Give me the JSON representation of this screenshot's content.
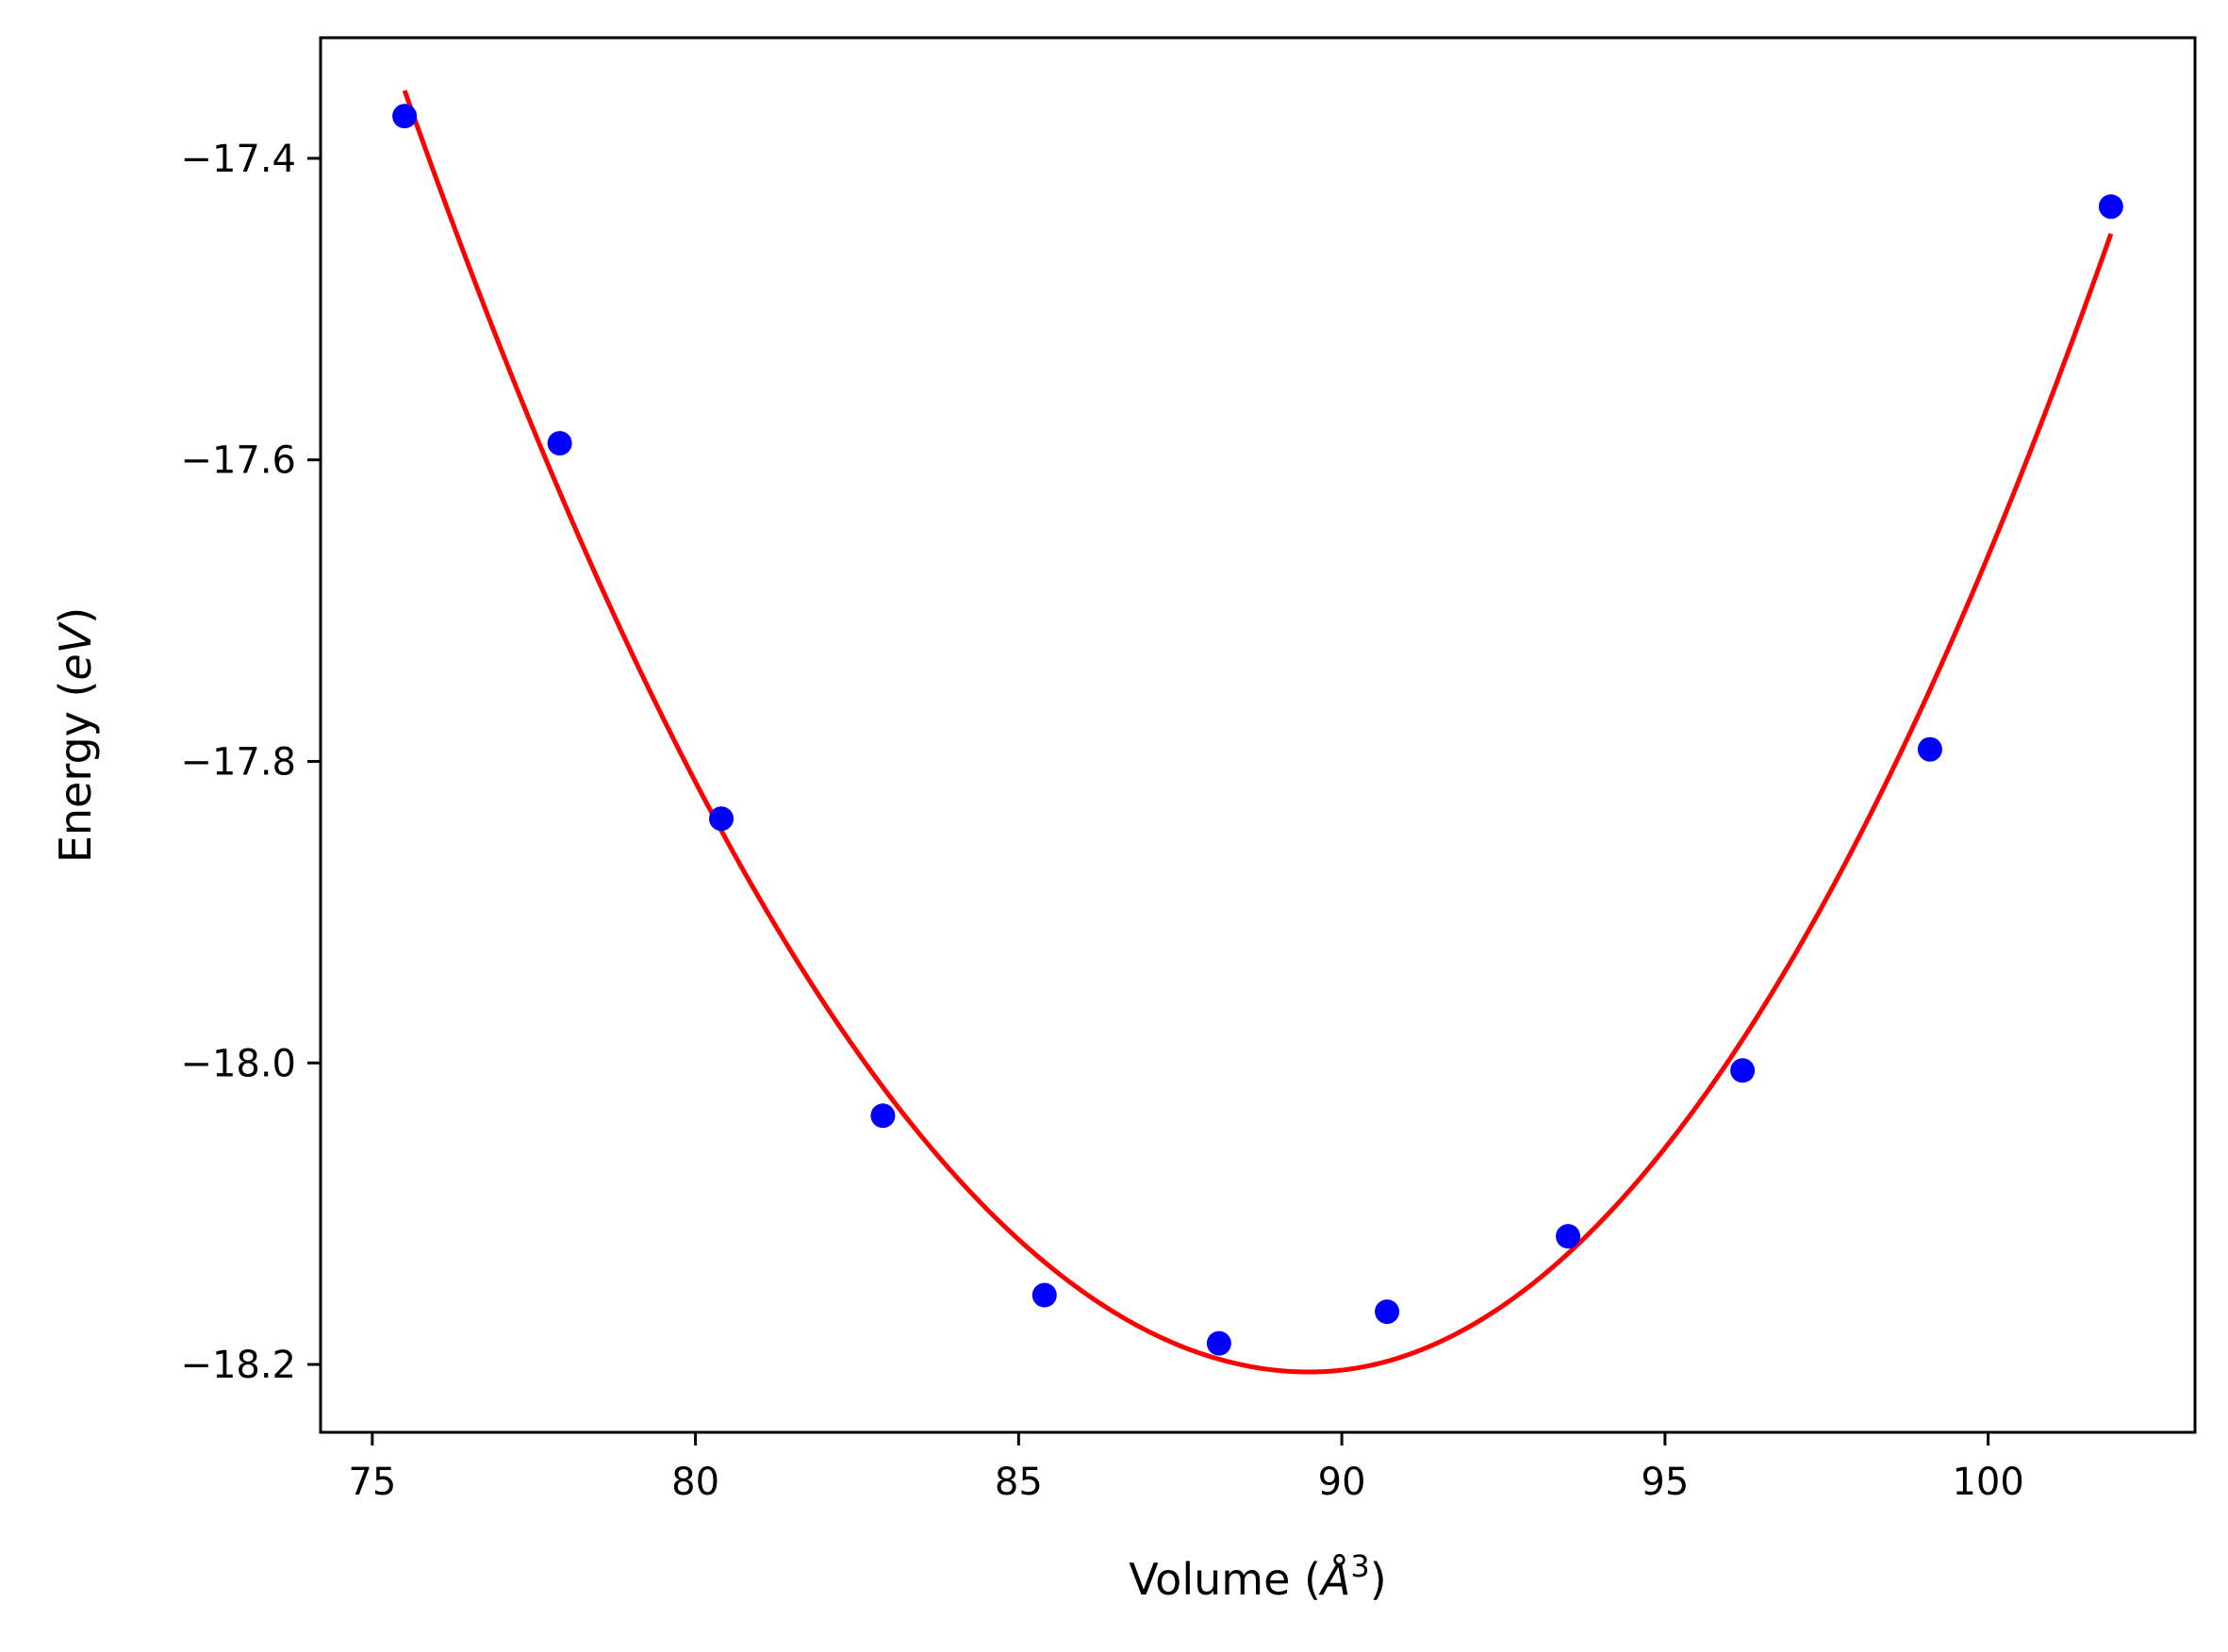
{
  "chart_data": {
    "type": "scatter",
    "xlabel": "Volume (Å³)",
    "xlabel_parts": {
      "main": "Volume (",
      "symbol": "Å",
      "exponent": "3",
      "close": ")"
    },
    "ylabel": "Energy (eV)",
    "ylabel_parts": {
      "main": "Energy (",
      "unit": "eV",
      "close": ")"
    },
    "xlim": [
      74.2,
      103.2
    ],
    "ylim": [
      -18.245,
      -17.32
    ],
    "xticks": [
      75,
      80,
      85,
      90,
      95,
      100
    ],
    "xtick_labels": [
      "75",
      "80",
      "85",
      "90",
      "95",
      "100"
    ],
    "yticks": [
      -17.4,
      -17.6,
      -17.8,
      -18.0,
      -18.2
    ],
    "ytick_labels": [
      "−17.4",
      "−17.6",
      "−17.8",
      "−18.0",
      "−18.2"
    ],
    "grid": false,
    "series": [
      {
        "kind": "points",
        "color": "#0000ff",
        "x": [
          75.5,
          77.9,
          80.4,
          82.9,
          85.4,
          88.1,
          90.7,
          93.5,
          96.2,
          99.1,
          101.9
        ],
        "y": [
          -17.372,
          -17.589,
          -17.838,
          -18.035,
          -18.154,
          -18.186,
          -18.165,
          -18.115,
          -18.005,
          -17.792,
          -17.432
        ]
      },
      {
        "kind": "fit",
        "color": "#ff0000",
        "x_range": [
          75.5,
          101.9
        ],
        "vertex": {
          "x": 89.5,
          "y": -18.205
        },
        "endpoints": [
          [
            75.5,
            -17.355
          ],
          [
            101.9,
            -17.45
          ]
        ]
      }
    ]
  }
}
